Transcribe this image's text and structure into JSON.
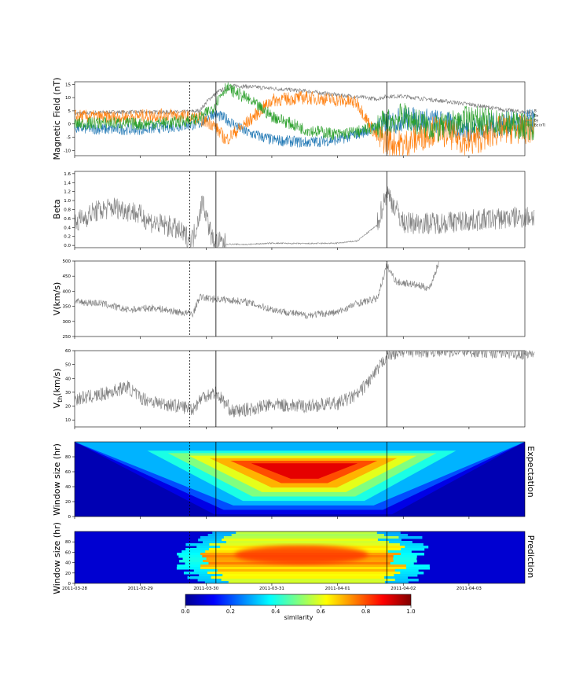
{
  "chart_data": [
    {
      "type": "line",
      "ylabel": "Magnetic Field (nT)",
      "ylim": [
        -12,
        16
      ],
      "yticks": [
        -10,
        -5,
        0,
        5,
        10,
        15
      ],
      "legend": {
        "placement": "right",
        "entries": [
          "B",
          "Bx",
          "By",
          "Bz (nT)"
        ]
      },
      "series": [
        {
          "name": "B",
          "color": "#7f7f7f",
          "x": [
            0,
            0.6,
            1.2,
            1.65,
            1.9,
            2.05,
            2.2,
            2.45,
            3.0,
            3.5,
            4.0,
            4.6,
            4.75,
            5.0,
            5.5,
            6.0,
            6.5,
            7.0
          ],
          "values": [
            4,
            4.5,
            4.5,
            4.5,
            5,
            9.5,
            12.5,
            14.5,
            13.5,
            12.5,
            11,
            9.5,
            10.5,
            10.5,
            9,
            7.5,
            5.5,
            4
          ]
        },
        {
          "name": "Bx",
          "color": "#1f77b4",
          "x": [
            0,
            0.5,
            1.0,
            1.5,
            1.9,
            2.1,
            2.3,
            2.6,
            3.0,
            3.5,
            4.0,
            4.4,
            4.6,
            5.0,
            5.5,
            6.0,
            6.5,
            7.0
          ],
          "values": [
            -1.5,
            -2,
            -2,
            -1,
            0,
            4,
            2,
            -3,
            -6,
            -7,
            -6,
            -3,
            -1,
            2,
            1,
            -2,
            0,
            1
          ]
        },
        {
          "name": "By",
          "color": "#ff7f0e",
          "x": [
            0,
            0.5,
            1.0,
            1.5,
            1.9,
            2.1,
            2.3,
            2.6,
            3.0,
            3.5,
            4.0,
            4.3,
            4.6,
            5.0,
            5.5,
            6.0,
            6.5,
            7.0
          ],
          "values": [
            3,
            2.5,
            3,
            3.5,
            2,
            0,
            -6,
            0,
            9,
            10,
            9,
            8,
            -5,
            -8,
            -2,
            -7,
            -2,
            -2
          ]
        },
        {
          "name": "Bz (nT)",
          "color": "#2ca02c",
          "x": [
            0,
            0.5,
            1.0,
            1.5,
            1.9,
            2.1,
            2.3,
            2.6,
            3.0,
            3.5,
            4.0,
            4.3,
            4.6,
            5.0,
            5.5,
            6.0,
            6.5,
            7.0
          ],
          "values": [
            0,
            0.5,
            0,
            0.5,
            2,
            6,
            14,
            10,
            3,
            -2,
            -4,
            -3,
            -1,
            3,
            -2,
            2,
            0,
            -1
          ]
        }
      ]
    },
    {
      "type": "line",
      "ylabel": "Beta",
      "ylim": [
        -0.05,
        1.65
      ],
      "yticks": [
        0.0,
        0.2,
        0.4,
        0.6,
        0.8,
        1.0,
        1.2,
        1.4,
        1.6
      ],
      "series": [
        {
          "color": "#7f7f7f",
          "x": [
            0,
            0.3,
            0.6,
            0.9,
            1.2,
            1.5,
            1.7,
            1.8,
            1.95,
            2.1,
            2.3,
            2.6,
            3.0,
            3.5,
            4.0,
            4.3,
            4.6,
            4.75,
            5.0,
            5.5,
            6.0,
            6.5,
            7.0
          ],
          "values": [
            0.5,
            0.75,
            0.85,
            0.75,
            0.5,
            0.4,
            0.2,
            0.15,
            1.0,
            0.1,
            0.03,
            0.02,
            0.05,
            0.04,
            0.05,
            0.1,
            0.45,
            1.2,
            0.5,
            0.5,
            0.55,
            0.6,
            0.65
          ]
        }
      ]
    },
    {
      "type": "line",
      "ylabel": "V(km/s)",
      "ylim": [
        250,
        500
      ],
      "yticks": [
        250,
        300,
        350,
        400,
        450,
        500
      ],
      "series": [
        {
          "color": "#7f7f7f",
          "x": [
            0,
            0.4,
            0.8,
            1.2,
            1.6,
            1.8,
            1.9,
            2.1,
            2.3,
            2.6,
            3.0,
            3.5,
            4.0,
            4.3,
            4.6,
            4.75,
            4.9,
            5.1,
            5.4,
            5.55
          ],
          "values": [
            365,
            360,
            338,
            345,
            330,
            325,
            380,
            375,
            372,
            365,
            340,
            320,
            330,
            360,
            375,
            485,
            430,
            425,
            410,
            500
          ]
        }
      ]
    },
    {
      "type": "line",
      "ylabel": "V_th(km/s)",
      "ylim": [
        5,
        60
      ],
      "yticks": [
        10,
        20,
        30,
        40,
        50,
        60
      ],
      "series": [
        {
          "color": "#7f7f7f",
          "x": [
            0,
            0.4,
            0.8,
            1.0,
            1.3,
            1.6,
            1.8,
            1.95,
            2.15,
            2.4,
            2.7,
            3.0,
            3.5,
            4.0,
            4.3,
            4.6,
            4.75,
            5.0,
            6.0,
            7.0
          ],
          "values": [
            25,
            28,
            34,
            26,
            22,
            20,
            18,
            27,
            30,
            16,
            18,
            21,
            20,
            22,
            28,
            45,
            57,
            60,
            60,
            58
          ]
        }
      ]
    },
    {
      "type": "heatmap",
      "label": "Expectation",
      "ylabel": "Window size (hr)",
      "ylim": [
        0,
        100
      ],
      "yticks": [
        0,
        20,
        40,
        60,
        80
      ],
      "peak": {
        "x": 3.5,
        "y": 60,
        "value": 0.95
      }
    },
    {
      "type": "heatmap",
      "label": "Prediction",
      "ylabel": "Window size (hr)",
      "ylim": [
        0,
        100
      ],
      "yticks": [
        0,
        20,
        40,
        60,
        80
      ],
      "xlabels": [
        "2011-03-28",
        "2011-03-29",
        "2011-03-30",
        "2011-03-31",
        "2011-04-01",
        "2011-04-02",
        "2011-04-03"
      ],
      "colorbar": {
        "label": "similarity",
        "ticks": [
          0.0,
          0.2,
          0.4,
          0.6,
          0.8,
          1.0
        ]
      }
    }
  ],
  "event_lines": [
    {
      "x": 1.75,
      "style": "dashed"
    },
    {
      "x": 2.15,
      "style": "solid"
    },
    {
      "x": 4.75,
      "style": "solid"
    }
  ],
  "xlim": [
    0,
    6.85
  ]
}
